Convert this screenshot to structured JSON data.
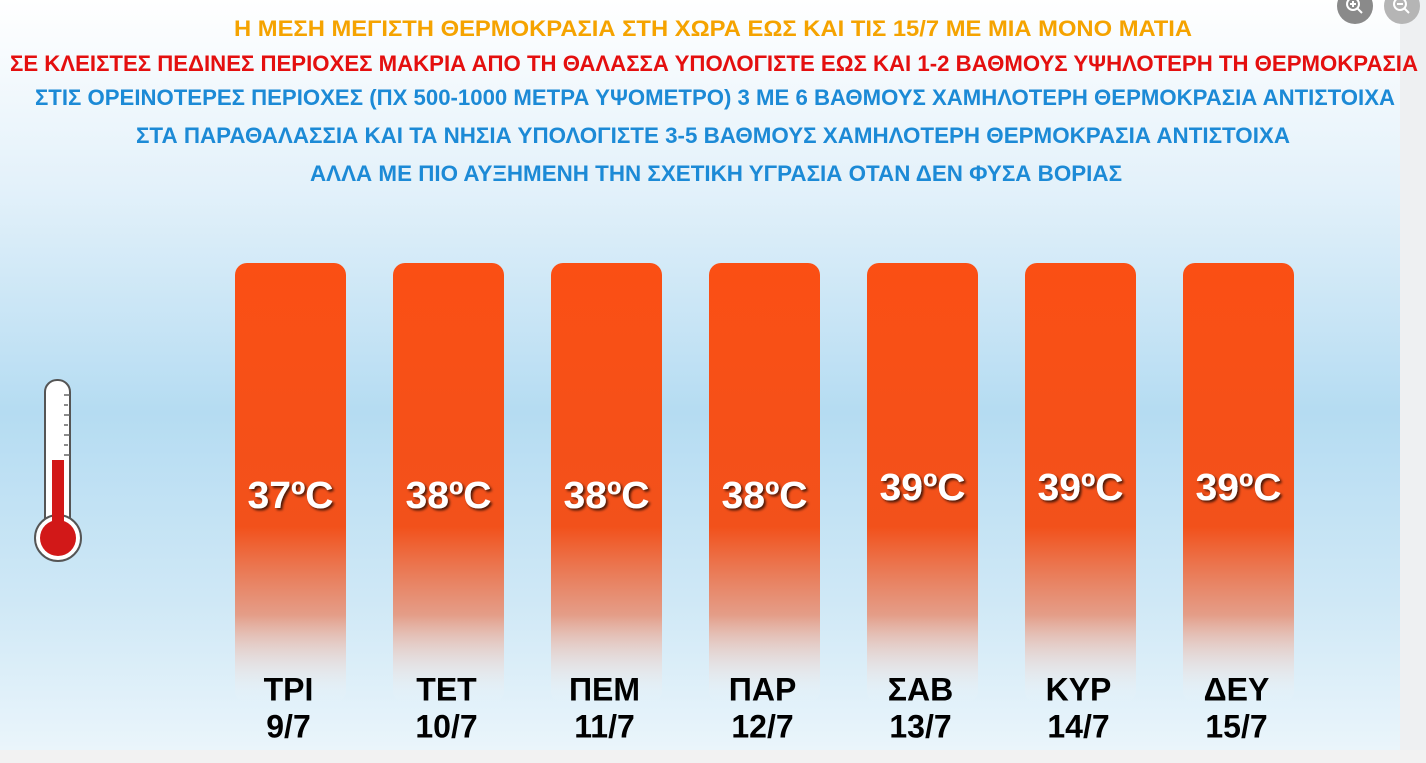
{
  "header": {
    "lines": [
      "Η ΜΕΣΗ ΜΕΓΙΣΤΗ ΘΕΡΜΟΚΡΑΣΙΑ ΣΤΗ ΧΩΡΑ ΕΩΣ ΚΑΙ ΤΙΣ 15/7 ΜΕ ΜΙΑ ΜΟΝΟ ΜΑΤΙΑ",
      "ΣΕ ΚΛΕΙΣΤΕΣ ΠΕΔΙΝΕΣ ΠΕΡΙΟΧΕΣ ΜΑΚΡΙΑ ΑΠΟ ΤΗ ΘΑΛΑΣΣΑ ΥΠΟΛΟΓΙΣΤΕ ΕΩΣ ΚΑΙ 1-2 ΒΑΘΜΟΥΣ ΥΨΗΛΟΤΕΡΗ ΤΗ ΘΕΡΜΟΚΡΑΣΙΑ",
      "ΣΤΙΣ ΟΡΕΙΝΟΤΕΡΕΣ ΠΕΡΙΟΧΕΣ (ΠΧ 500-1000 ΜΕΤΡΑ ΥΨΟΜΕΤΡΟ) 3 ΜΕ 6 ΒΑΘΜΟΥΣ ΧΑΜΗΛΟΤΕΡΗ ΘΕΡΜΟΚΡΑΣΙΑ ΑΝΤΙΣΤΟΙΧΑ",
      "ΣΤΑ ΠΑΡΑΘΑΛΑΣΣΙΑ ΚΑΙ ΤΑ ΝΗΣΙΑ ΥΠΟΛΟΓΙΣΤΕ 3-5 ΒΑΘΜΟΥΣ ΧΑΜΗΛΟΤΕΡΗ ΘΕΡΜΟΚΡΑΣΙΑ ΑΝΤΙΣΤΟΙΧΑ",
      "ΑΛΛΑ ΜΕ ΠΙΟ ΑΥΞΗΜΕΝΗ ΤΗΝ ΣΧΕΤΙΚΗ ΥΓΡΑΣΙΑ ΟΤΑΝ ΔΕΝ ΦΥΣΑ ΒΟΡΙΑΣ"
    ]
  },
  "days": [
    {
      "day": "ΤΡΙ",
      "date": "9/7",
      "temp": "37ºC"
    },
    {
      "day": "ΤΕΤ",
      "date": "10/7",
      "temp": "38ºC"
    },
    {
      "day": "ΠΕΜ",
      "date": "11/7",
      "temp": "38ºC"
    },
    {
      "day": "ΠΑΡ",
      "date": "12/7",
      "temp": "38ºC"
    },
    {
      "day": "ΣΑΒ",
      "date": "13/7",
      "temp": "39ºC"
    },
    {
      "day": "ΚΥΡ",
      "date": "14/7",
      "temp": "39ºC"
    },
    {
      "day": "ΔΕΥ",
      "date": "15/7",
      "temp": "39ºC"
    }
  ]
}
